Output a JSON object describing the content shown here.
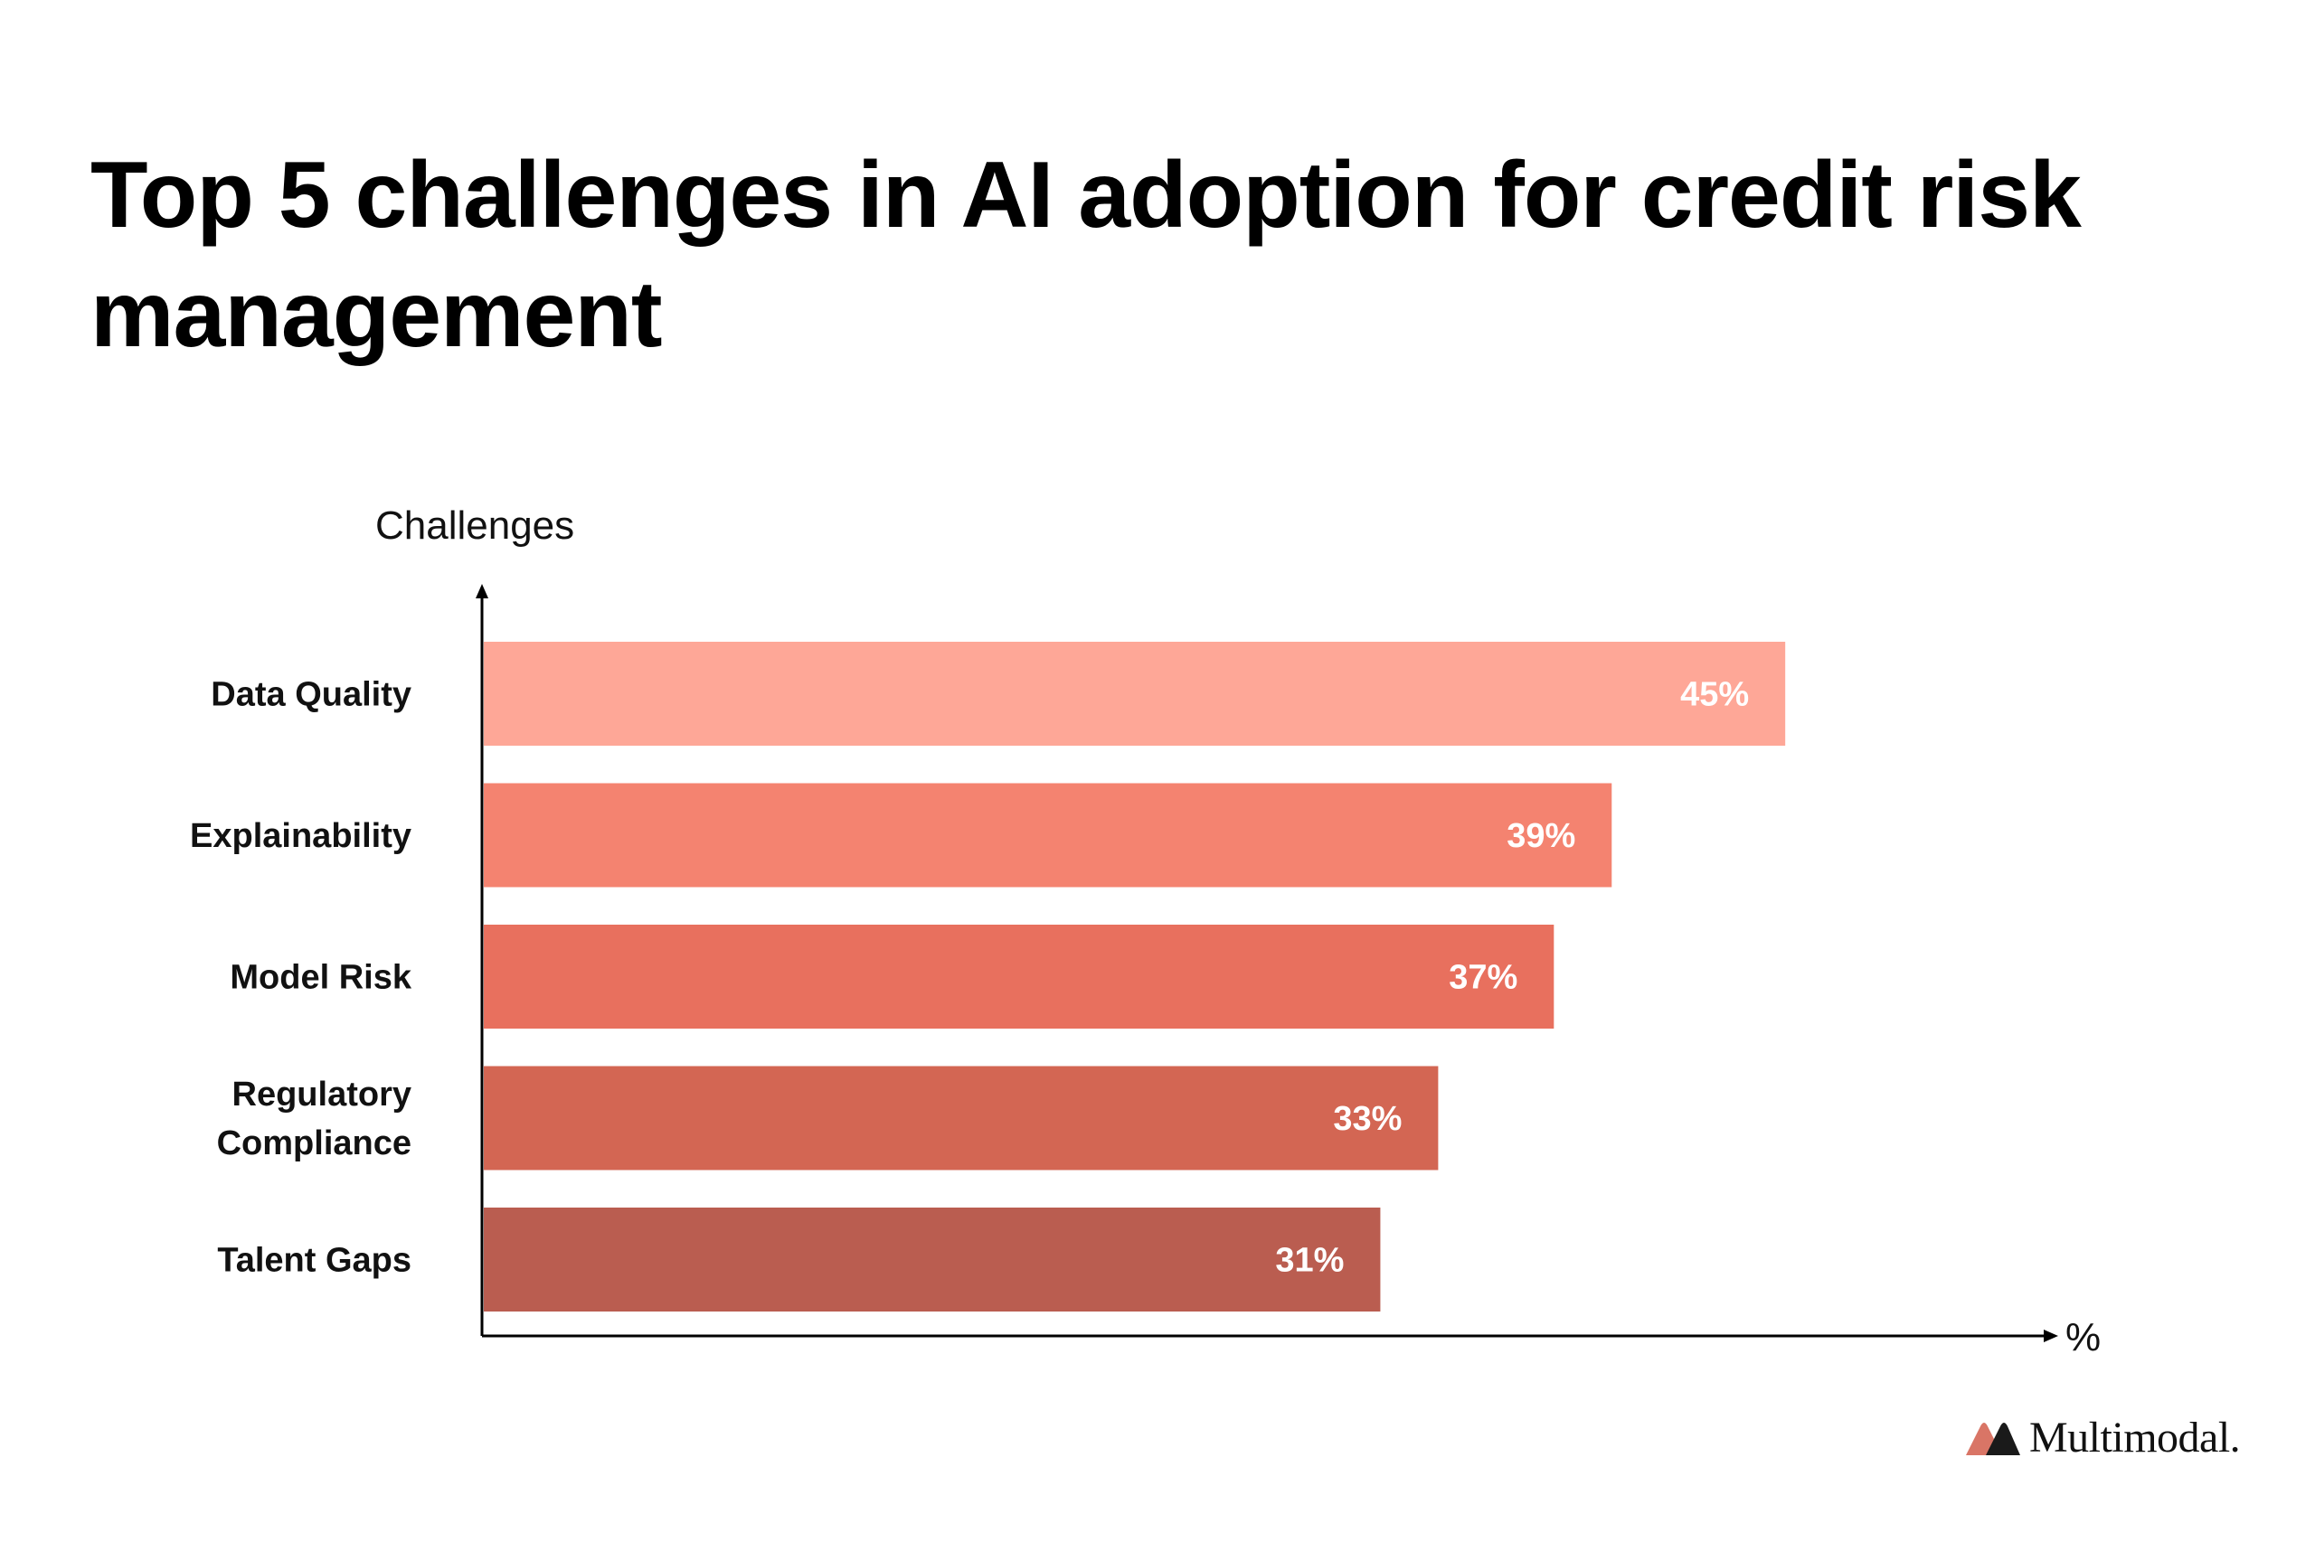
{
  "title": "Top 5 challenges in AI adoption for credit risk management",
  "chart_data": {
    "type": "bar",
    "orientation": "horizontal",
    "title": "Top 5 challenges in AI adoption for credit risk management",
    "ylabel": "Challenges",
    "xlabel": "%",
    "categories": [
      [
        "Data Quality"
      ],
      [
        "Explainability"
      ],
      [
        "Model Risk"
      ],
      [
        "Regulatory",
        "Compliance"
      ],
      [
        "Talent Gaps"
      ]
    ],
    "values": [
      45,
      39,
      37,
      33,
      31
    ],
    "data_labels": [
      "45%",
      "39%",
      "37%",
      "33%",
      "31%"
    ],
    "colors": [
      "#FEA797",
      "#F48370",
      "#E8705E",
      "#D36653",
      "#BA5D50"
    ],
    "xlim": [
      0,
      54
    ]
  },
  "logo": {
    "text": "Multimodal.",
    "colors": [
      "#D97566",
      "#1a1a1a"
    ]
  }
}
